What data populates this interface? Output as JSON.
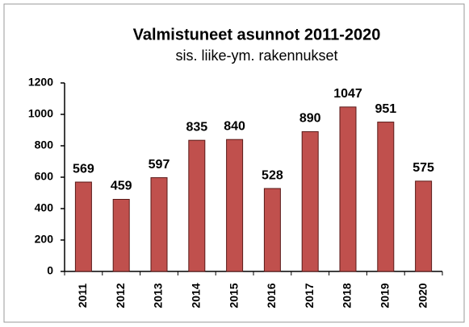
{
  "chart_data": {
    "type": "bar",
    "title": "Valmistuneet asunnot 2011-2020",
    "subtitle": "sis. liike-ym. rakennukset",
    "categories": [
      "2011",
      "2012",
      "2013",
      "2014",
      "2015",
      "2016",
      "2017",
      "2018",
      "2019",
      "2020"
    ],
    "values": [
      569,
      459,
      597,
      835,
      840,
      528,
      890,
      1047,
      951,
      575
    ],
    "color": "#c0504d",
    "ylim": [
      0,
      1200
    ],
    "yticks": [
      0,
      200,
      400,
      600,
      800,
      1000,
      1200
    ],
    "grid": false
  }
}
